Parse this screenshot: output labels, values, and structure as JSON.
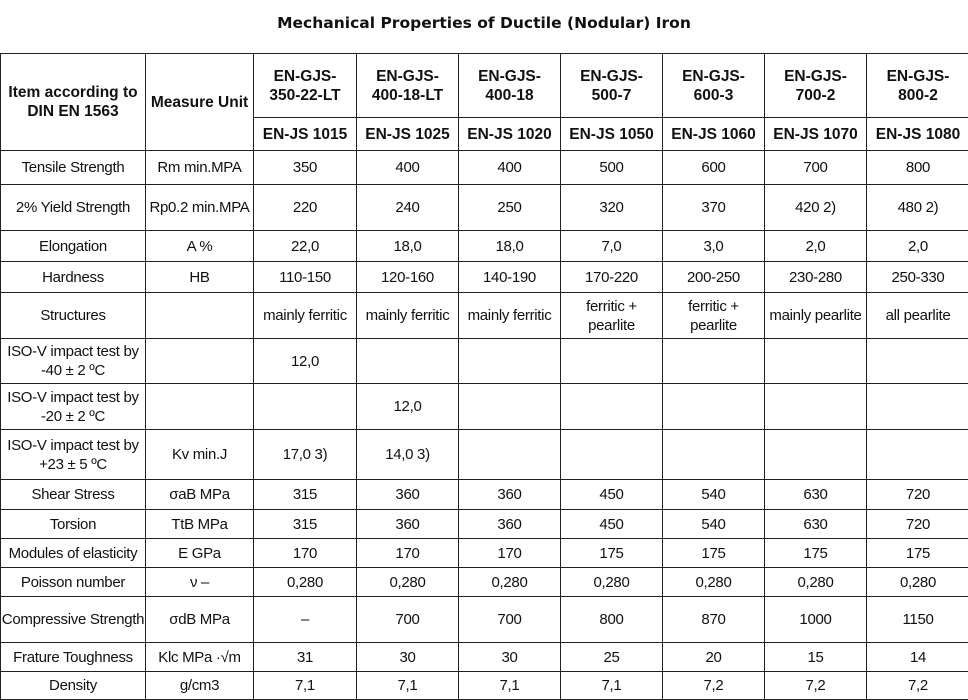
{
  "title": "Mechanical Properties of Ductile (Nodular) Iron",
  "header": {
    "item": "Item according to DIN EN 1563",
    "unit": "Measure Unit",
    "grades": [
      "EN-GJS-350-22-LT",
      "EN-GJS-400-18-LT",
      "EN-GJS-400-18",
      "EN-GJS-500-7",
      "EN-GJS-600-3",
      "EN-GJS-700-2",
      "EN-GJS-800-2"
    ],
    "grades_top": [
      "EN-GJS-",
      "EN-GJS-",
      "EN-GJS-",
      "EN-GJS-",
      "EN-GJS-",
      "EN-GJS-",
      "EN-GJS-"
    ],
    "grades_bottom": [
      "350-22-LT",
      "400-18-LT",
      "400-18",
      "500-7",
      "600-3",
      "700-2",
      "800-2"
    ],
    "codes": [
      "EN-JS 1015",
      "EN-JS 1025",
      "EN-JS 1020",
      "EN-JS 1050",
      "EN-JS 1060",
      "EN-JS 1070",
      "EN-JS 1080"
    ]
  },
  "rows": [
    {
      "item": "Tensile Strength",
      "unit": "Rm min.MPA",
      "values": [
        "350",
        "400",
        "400",
        "500",
        "600",
        "700",
        "800"
      ]
    },
    {
      "item": "2% Yield Strength",
      "unit": "Rp0.2 min.MPA",
      "values": [
        "220",
        "240",
        "250",
        "320",
        "370",
        "420 2)",
        "480 2)"
      ]
    },
    {
      "item": "Elongation",
      "unit": "A %",
      "values": [
        "22,0",
        "18,0",
        "18,0",
        "7,0",
        "3,0",
        "2,0",
        "2,0"
      ]
    },
    {
      "item": "Hardness",
      "unit": "HB",
      "values": [
        "110-150",
        "120-160",
        "140-190",
        "170-220",
        "200-250",
        "230-280",
        "250-330"
      ]
    },
    {
      "item": "Structures",
      "unit": "",
      "values": [
        "mainly ferritic",
        "mainly ferritic",
        "mainly ferritic",
        "ferritic + pearlite",
        "ferritic + pearlite",
        "mainly pearlite",
        "all pearlite"
      ]
    },
    {
      "item": "ISO-V impact test by -40 ± 2 ºC",
      "unit": "",
      "values": [
        "12,0",
        "",
        "",
        "",
        "",
        "",
        ""
      ]
    },
    {
      "item": "ISO-V impact test by -20 ± 2 ºC",
      "unit": "",
      "values": [
        "",
        "12,0",
        "",
        "",
        "",
        "",
        ""
      ]
    },
    {
      "item": "ISO-V impact test by +23 ± 5 ºC",
      "unit": "Kv min.J",
      "values": [
        "17,0 3)",
        "14,0 3)",
        "",
        "",
        "",
        "",
        ""
      ]
    },
    {
      "item": "Shear Stress",
      "unit": "σaB MPa",
      "values": [
        "315",
        "360",
        "360",
        "450",
        "540",
        "630",
        "720"
      ]
    },
    {
      "item": "Torsion",
      "unit": "TtB MPa",
      "values": [
        "315",
        "360",
        "360",
        "450",
        "540",
        "630",
        "720"
      ]
    },
    {
      "item": "Modules of elasticity",
      "unit": "E GPa",
      "values": [
        "170",
        "170",
        "170",
        "175",
        "175",
        "175",
        "175"
      ]
    },
    {
      "item": "Poisson number",
      "unit": "ν –",
      "values": [
        "0,280",
        "0,280",
        "0,280",
        "0,280",
        "0,280",
        "0,280",
        "0,280"
      ]
    },
    {
      "item": "Compressive Strength",
      "unit": "σdB MPa",
      "values": [
        "–",
        "700",
        "700",
        "800",
        "870",
        "1000",
        "1150"
      ]
    },
    {
      "item": "Frature Toughness",
      "unit": "Klc MPa ·√m",
      "values": [
        "31",
        "30",
        "30",
        "25",
        "20",
        "15",
        "14"
      ]
    },
    {
      "item": "Density",
      "unit": "g/cm3",
      "values": [
        "7,1",
        "7,1",
        "7,1",
        "7,1",
        "7,2",
        "7,2",
        "7,2"
      ]
    }
  ]
}
